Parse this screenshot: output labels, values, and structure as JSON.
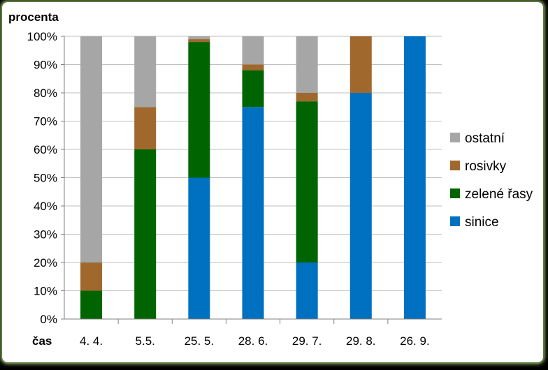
{
  "chart_data": {
    "type": "bar",
    "stacked": true,
    "ylabel": "procenta",
    "xlabel": "čas",
    "ylim": [
      0,
      100
    ],
    "yticks": [
      "0%",
      "10%",
      "20%",
      "30%",
      "40%",
      "50%",
      "60%",
      "70%",
      "80%",
      "90%",
      "100%"
    ],
    "categories": [
      "4. 4.",
      "5.5.",
      "25. 5.",
      "28. 6.",
      "29. 7.",
      "29. 8.",
      "26. 9."
    ],
    "series": [
      {
        "name": "sinice",
        "color": "#0070c0",
        "values": [
          0,
          0,
          50,
          75,
          20,
          80,
          100
        ]
      },
      {
        "name": "zelené řasy",
        "color": "#006400",
        "values": [
          10,
          60,
          48,
          13,
          57,
          0,
          0
        ]
      },
      {
        "name": "rosivky",
        "color": "#a0682c",
        "values": [
          10,
          15,
          1,
          2,
          3,
          20,
          0
        ]
      },
      {
        "name": "ostatní",
        "color": "#a6a6a6",
        "values": [
          80,
          25,
          1,
          10,
          20,
          0,
          0
        ]
      }
    ],
    "grid": true,
    "legend_position": "right"
  }
}
